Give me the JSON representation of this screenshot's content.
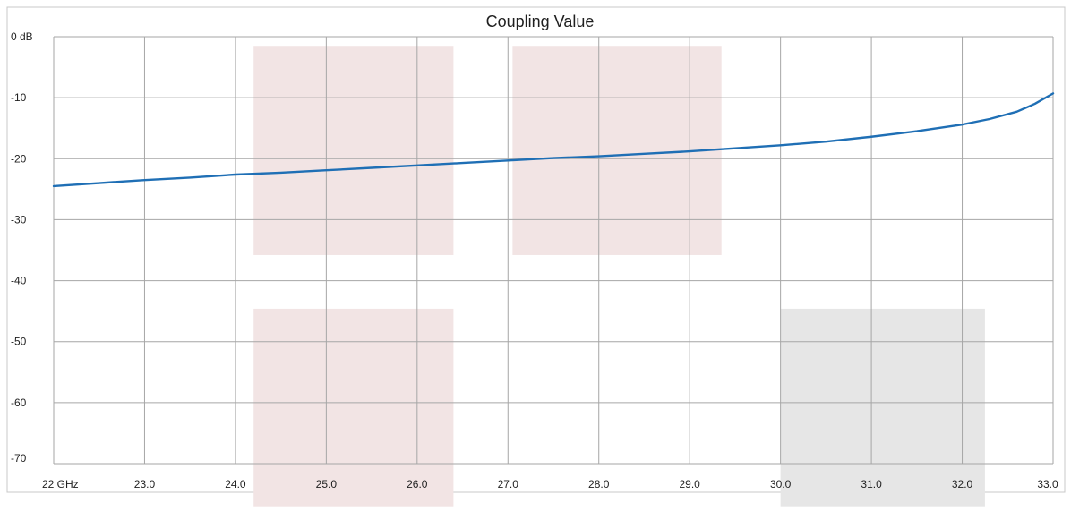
{
  "chart_data": {
    "type": "line",
    "title": "Coupling Value",
    "xlabel": "",
    "ylabel": "",
    "xlim": [
      22,
      33
    ],
    "ylim": [
      -70,
      0
    ],
    "x_ticks": [
      {
        "value": 22,
        "label": "22 GHz"
      },
      {
        "value": 23,
        "label": "23.0"
      },
      {
        "value": 24,
        "label": "24.0"
      },
      {
        "value": 25,
        "label": "25.0"
      },
      {
        "value": 26,
        "label": "26.0"
      },
      {
        "value": 27,
        "label": "27.0"
      },
      {
        "value": 28,
        "label": "28.0"
      },
      {
        "value": 29,
        "label": "29.0"
      },
      {
        "value": 30,
        "label": "30.0"
      },
      {
        "value": 31,
        "label": "31.0"
      },
      {
        "value": 32,
        "label": "32.0"
      },
      {
        "value": 33,
        "label": "33.0"
      }
    ],
    "y_ticks": [
      {
        "value": 0,
        "label": "0 dB"
      },
      {
        "value": -10,
        "label": "-10"
      },
      {
        "value": -20,
        "label": "-20"
      },
      {
        "value": -30,
        "label": "-30"
      },
      {
        "value": -40,
        "label": "-40"
      },
      {
        "value": -50,
        "label": "-50"
      },
      {
        "value": -60,
        "label": "-60"
      },
      {
        "value": -70,
        "label": "-70"
      }
    ],
    "grid": true,
    "series": [
      {
        "name": "",
        "color": "#1f6fb5",
        "x": [
          22.0,
          22.5,
          23.0,
          23.5,
          24.0,
          24.5,
          25.0,
          25.5,
          26.0,
          26.5,
          27.0,
          27.5,
          28.0,
          28.5,
          29.0,
          29.5,
          30.0,
          30.5,
          31.0,
          31.5,
          32.0,
          32.3,
          32.6,
          32.8,
          33.0
        ],
        "y": [
          -24.5,
          -24.0,
          -23.5,
          -23.1,
          -22.6,
          -22.3,
          -21.9,
          -21.5,
          -21.1,
          -20.7,
          -20.3,
          -19.9,
          -19.6,
          -19.2,
          -18.8,
          -18.3,
          -17.8,
          -17.2,
          -16.4,
          -15.5,
          -14.4,
          -13.5,
          -12.3,
          -11.0,
          -9.3
        ]
      }
    ],
    "bands": [
      {
        "x": [
          24.2,
          26.4
        ],
        "y": [
          -1.5,
          -35.8
        ],
        "color": "#f2e4e4"
      },
      {
        "x": [
          27.05,
          29.35
        ],
        "y": [
          -1.5,
          -35.8
        ],
        "color": "#f2e4e4"
      },
      {
        "x": [
          24.2,
          26.4
        ],
        "y": [
          -44.6,
          -77
        ],
        "color": "#f2e4e4"
      },
      {
        "x": [
          30.0,
          32.25
        ],
        "y": [
          -44.6,
          -77
        ],
        "color": "#e6e6e6"
      }
    ],
    "colors": {
      "grid": "#a6a6a6",
      "frame": "#c8c8c8"
    }
  }
}
